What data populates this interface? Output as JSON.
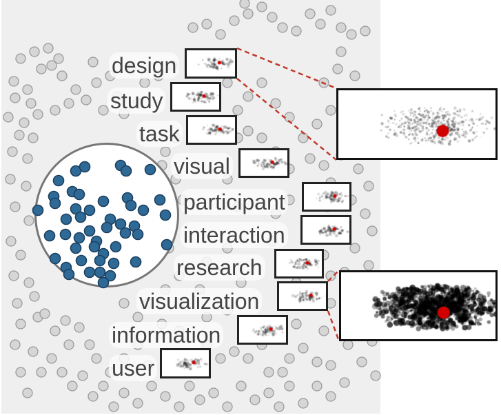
{
  "colors": {
    "background_panel": "#efefef",
    "grey_dot_fill": "#d6d6d6",
    "grey_dot_stroke": "#9a9a9a",
    "blue_dot_fill": "#2f6a97",
    "blue_dot_stroke": "#1b3f5e",
    "lens_border": "#777777",
    "highlight_red": "#d00000",
    "connector": "#c0392b"
  },
  "terms": [
    "design",
    "study",
    "task",
    "visual",
    "participant",
    "interaction",
    "research",
    "visualization",
    "information",
    "user"
  ],
  "zoom_targets": [
    "design",
    "visualization"
  ]
}
